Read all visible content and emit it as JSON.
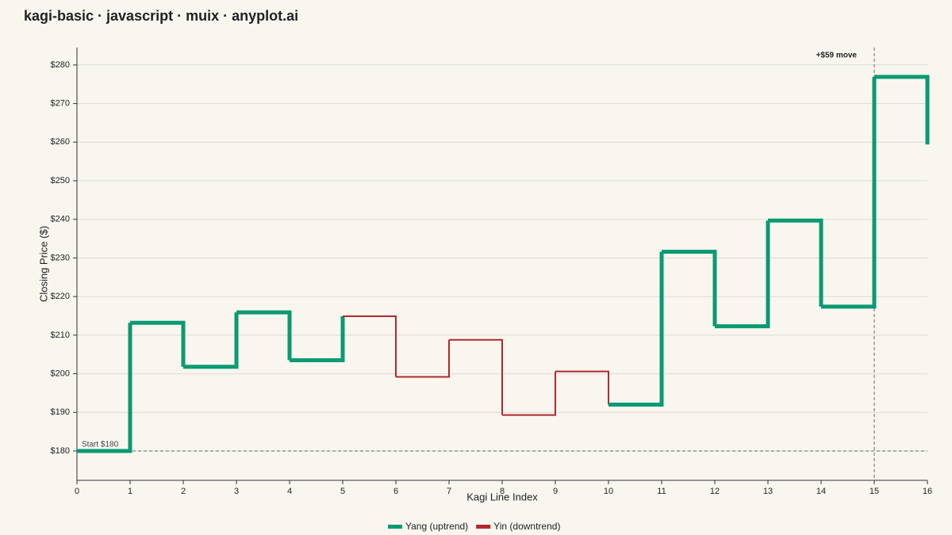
{
  "chart_data": {
    "type": "kagi",
    "title": "kagi-basic · javascript · muix · anyplot.ai",
    "x_label": "Kagi Line Index",
    "y_label": "Closing Price ($)",
    "x": [
      0,
      1,
      2,
      3,
      4,
      5,
      6,
      7,
      8,
      9,
      10,
      11,
      12,
      13,
      14,
      15,
      16
    ],
    "values": [
      180,
      213.2,
      201.8,
      215.9,
      203.5,
      214.9,
      199.2,
      208.8,
      189.3,
      200.6,
      192,
      231.6,
      212.3,
      239.7,
      217.4,
      276.9,
      259.4
    ],
    "segment_trend": [
      0,
      0,
      0,
      0,
      0,
      1,
      1,
      1,
      1,
      1,
      0,
      0,
      0,
      0,
      0,
      0
    ],
    "series": [
      {
        "name": "Yang (uptrend)",
        "color": "#0a9a72",
        "width": 5
      },
      {
        "name": "Yin (downtrend)",
        "color": "#b0292e",
        "width": 2
      }
    ],
    "reference_line": {
      "y": 180,
      "label": "Start $180"
    },
    "marker_line": {
      "x": 15,
      "label": "+$59 move"
    },
    "xlim": [
      0,
      16
    ],
    "ylim": [
      172.4,
      284.5
    ],
    "xticks": [
      0,
      1,
      2,
      3,
      4,
      5,
      6,
      7,
      8,
      9,
      10,
      11,
      12,
      13,
      14,
      15,
      16
    ],
    "yticks": [
      {
        "value": 180,
        "label": "$180"
      },
      {
        "value": 190,
        "label": "$190"
      },
      {
        "value": 200,
        "label": "$200"
      },
      {
        "value": 210,
        "label": "$210"
      },
      {
        "value": 220,
        "label": "$220"
      },
      {
        "value": 230,
        "label": "$230"
      },
      {
        "value": 240,
        "label": "$240"
      },
      {
        "value": 250,
        "label": "$250"
      },
      {
        "value": 260,
        "label": "$260"
      },
      {
        "value": 270,
        "label": "$270"
      },
      {
        "value": 280,
        "label": "$280"
      }
    ],
    "grid": true,
    "legend": "bottom"
  }
}
